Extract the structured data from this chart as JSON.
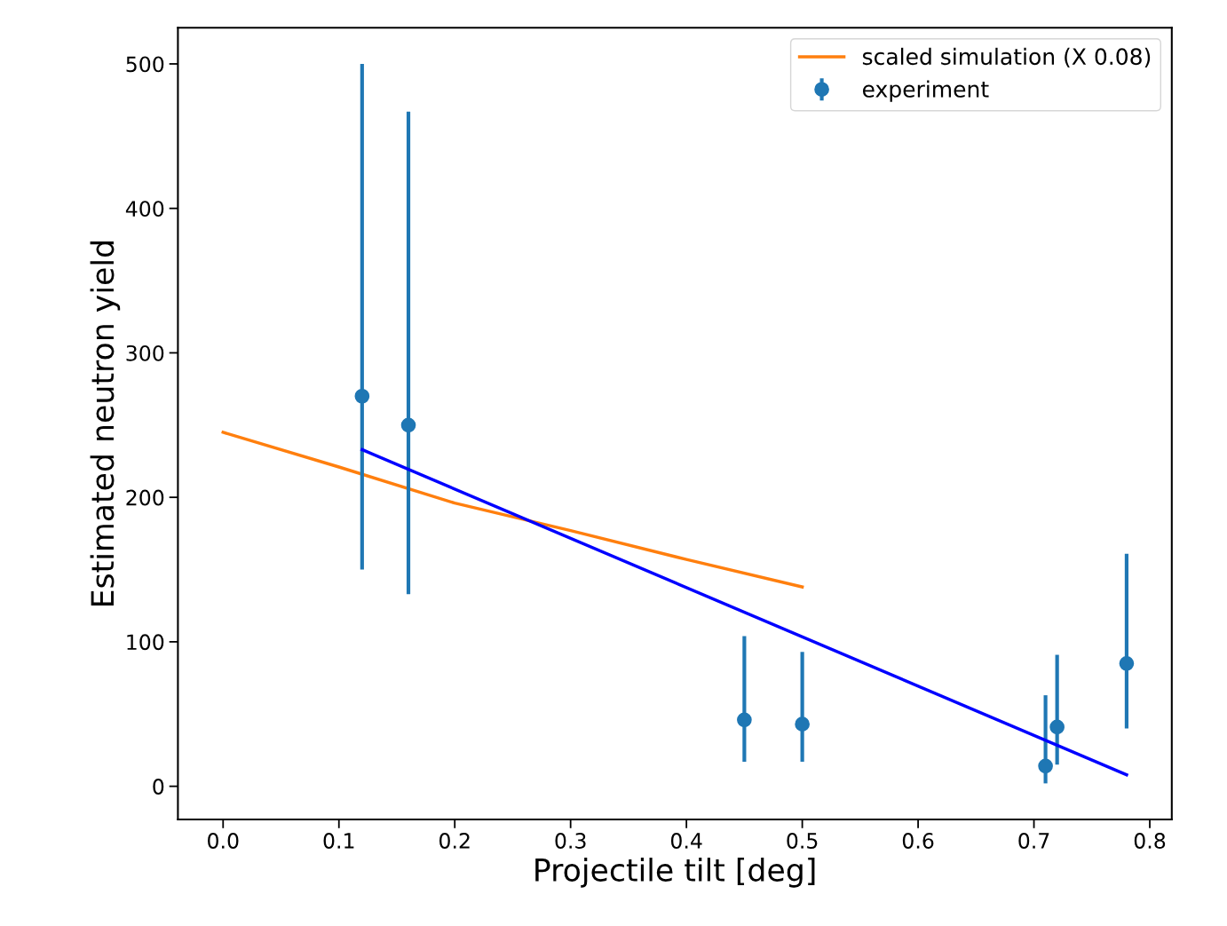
{
  "chart_data": {
    "type": "scatter",
    "xlabel": "Projectile tilt [deg]",
    "ylabel": "Estimated neutron yield",
    "xlim": [
      -0.039,
      0.819
    ],
    "ylim": [
      -23,
      525
    ],
    "xticks": [
      {
        "value": 0,
        "label": "0.0"
      },
      0.1,
      0.2,
      0.3,
      0.4,
      0.5,
      0.6,
      0.7,
      {
        "value": 0.8,
        "label": "0.8"
      }
    ],
    "yticks": [
      0,
      100,
      200,
      300,
      400,
      500
    ],
    "legend": "top right",
    "grid": false,
    "series": [
      {
        "name": "scaled simulation (X 0.08)",
        "type": "line",
        "color": "#ff7f0e",
        "x": [
          0,
          0.1,
          0.2,
          0.3,
          0.4,
          0.5
        ],
        "values": [
          245,
          221,
          196,
          177,
          157,
          138
        ]
      },
      {
        "name": "experiment",
        "color": "#1f77b4",
        "marker": "circle",
        "x": [
          0.12,
          0.16,
          0.45,
          0.5,
          0.71,
          0.72,
          0.78
        ],
        "values": [
          270,
          250,
          46,
          43,
          14,
          41,
          85
        ],
        "errors": [
          [
            150,
            500
          ],
          [
            133,
            467
          ],
          [
            17,
            104
          ],
          [
            17,
            93
          ],
          [
            2,
            63
          ],
          [
            15,
            91
          ],
          [
            40,
            161
          ]
        ]
      },
      {
        "type": "line",
        "color": "#0000ff",
        "x": [
          0.12,
          0.78
        ],
        "values": [
          233,
          8
        ]
      }
    ]
  }
}
